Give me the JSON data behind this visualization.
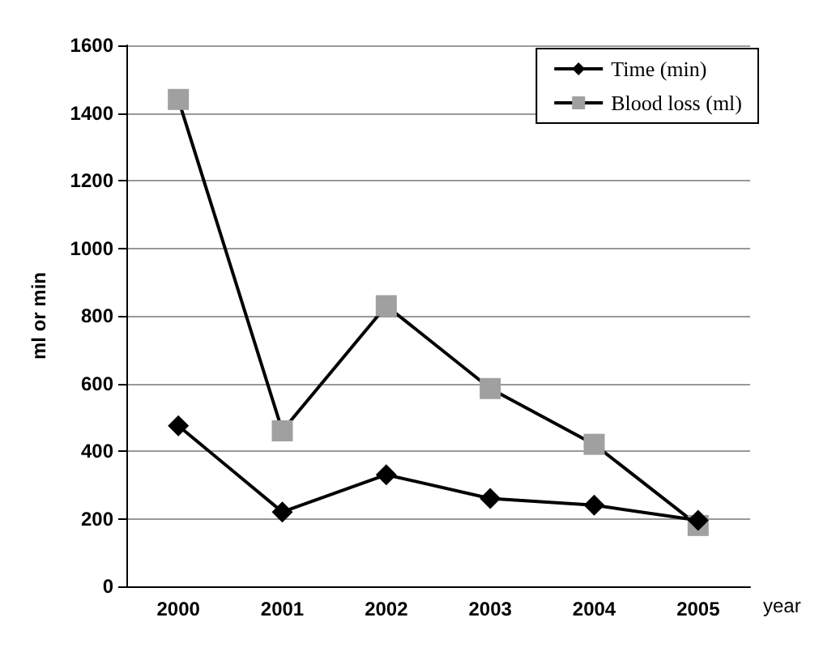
{
  "chart_data": {
    "type": "line",
    "xlabel": "year",
    "ylabel": "ml or min",
    "categories": [
      "2000",
      "2001",
      "2002",
      "2003",
      "2004",
      "2005"
    ],
    "series": [
      {
        "name": "Time (min)",
        "color": "#000000",
        "marker": "diamond",
        "values": [
          475,
          220,
          330,
          260,
          240,
          195
        ]
      },
      {
        "name": "Blood loss (ml)",
        "color": "#a0a0a0",
        "marker": "square",
        "values": [
          1440,
          460,
          830,
          585,
          420,
          180
        ]
      }
    ],
    "ylim": [
      0,
      1600
    ],
    "yticks": [
      0,
      200,
      400,
      600,
      800,
      1000,
      1200,
      1400,
      1600
    ],
    "grid": "y",
    "legend": "top right",
    "line_style": "solid"
  }
}
